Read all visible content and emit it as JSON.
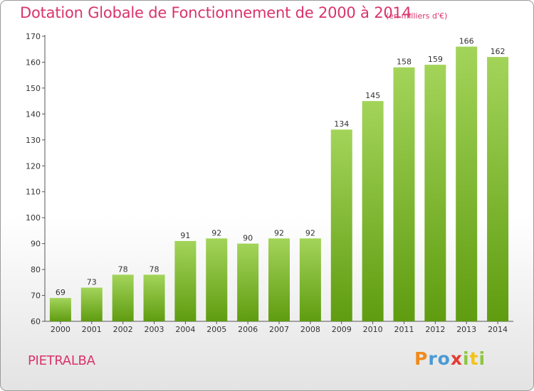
{
  "chart_data": {
    "type": "bar",
    "title": "Dotation Globale de Fonctionnement de 2000 à 2014",
    "subtitle": "(en milliers d'€)",
    "categories": [
      "2000",
      "2001",
      "2002",
      "2003",
      "2004",
      "2005",
      "2006",
      "2007",
      "2008",
      "2009",
      "2010",
      "2011",
      "2012",
      "2013",
      "2014"
    ],
    "values": [
      69,
      73,
      78,
      78,
      91,
      92,
      90,
      92,
      92,
      134,
      145,
      158,
      159,
      166,
      162
    ],
    "ylim": [
      60,
      170
    ],
    "yticks": [
      60,
      70,
      80,
      90,
      100,
      110,
      120,
      130,
      140,
      150,
      160,
      170
    ],
    "xlabel": "",
    "ylabel": "",
    "grid": false,
    "colors": {
      "bar_top": "#a3d45a",
      "bar_bottom": "#5f9c10",
      "text": "#d9336a",
      "axis": "#555555"
    }
  },
  "commune": "PIETRALBA",
  "logo": {
    "letters": [
      "P",
      "r",
      "o",
      "x",
      "i",
      "t",
      "i"
    ],
    "colors": [
      "#f08a1c",
      "#4a9ad4",
      "#4a9ad4",
      "#e53a32",
      "#8cc63f",
      "#f3c21a",
      "#8cc63f"
    ]
  }
}
